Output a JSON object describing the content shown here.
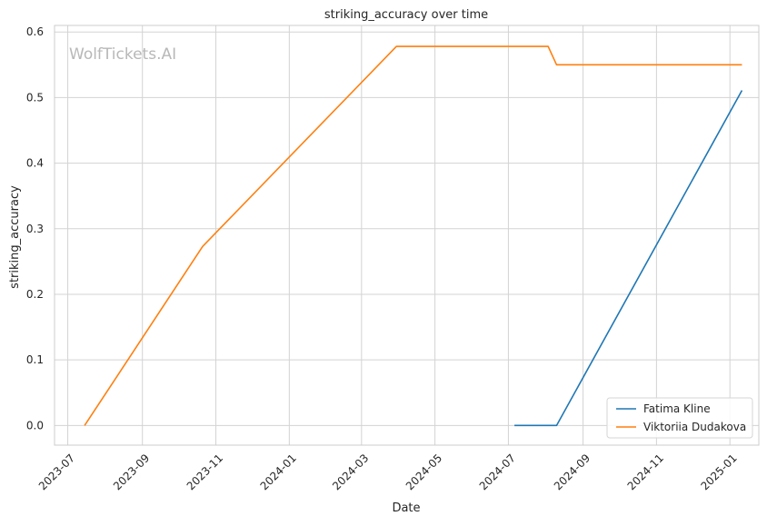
{
  "chart_data": {
    "type": "line",
    "title": "striking_accuracy over time",
    "xlabel": "Date",
    "ylabel": "striking_accuracy",
    "watermark": "WolfTickets.AI",
    "x_range": [
      "2023-06-20",
      "2025-01-25"
    ],
    "y_range": [
      -0.03,
      0.61
    ],
    "x_ticks": [
      "2023-07-01",
      "2023-09-01",
      "2023-11-01",
      "2024-01-01",
      "2024-03-01",
      "2024-05-01",
      "2024-07-01",
      "2024-09-01",
      "2024-11-01",
      "2025-01-01"
    ],
    "x_tick_labels": [
      "2023-07",
      "2023-09",
      "2023-11",
      "2024-01",
      "2024-03",
      "2024-05",
      "2024-07",
      "2024-09",
      "2024-11",
      "2025-01"
    ],
    "y_ticks": [
      0.0,
      0.1,
      0.2,
      0.3,
      0.4,
      0.5,
      0.6
    ],
    "y_tick_labels": [
      "0.0",
      "0.1",
      "0.2",
      "0.3",
      "0.4",
      "0.5",
      "0.6"
    ],
    "grid": true,
    "legend_position": "bottom-right",
    "series": [
      {
        "name": "Fatima Kline",
        "color": "#1f77b4",
        "points": [
          {
            "x": "2024-07-06",
            "y": 0.0
          },
          {
            "x": "2024-08-10",
            "y": 0.0
          },
          {
            "x": "2025-01-11",
            "y": 0.511
          }
        ]
      },
      {
        "name": "Viktoriia Dudakova",
        "color": "#ff7f0e",
        "points": [
          {
            "x": "2023-07-15",
            "y": 0.0
          },
          {
            "x": "2023-10-21",
            "y": 0.273
          },
          {
            "x": "2024-03-30",
            "y": 0.578
          },
          {
            "x": "2024-08-03",
            "y": 0.578
          },
          {
            "x": "2024-08-10",
            "y": 0.55
          },
          {
            "x": "2025-01-11",
            "y": 0.55
          }
        ]
      }
    ]
  }
}
